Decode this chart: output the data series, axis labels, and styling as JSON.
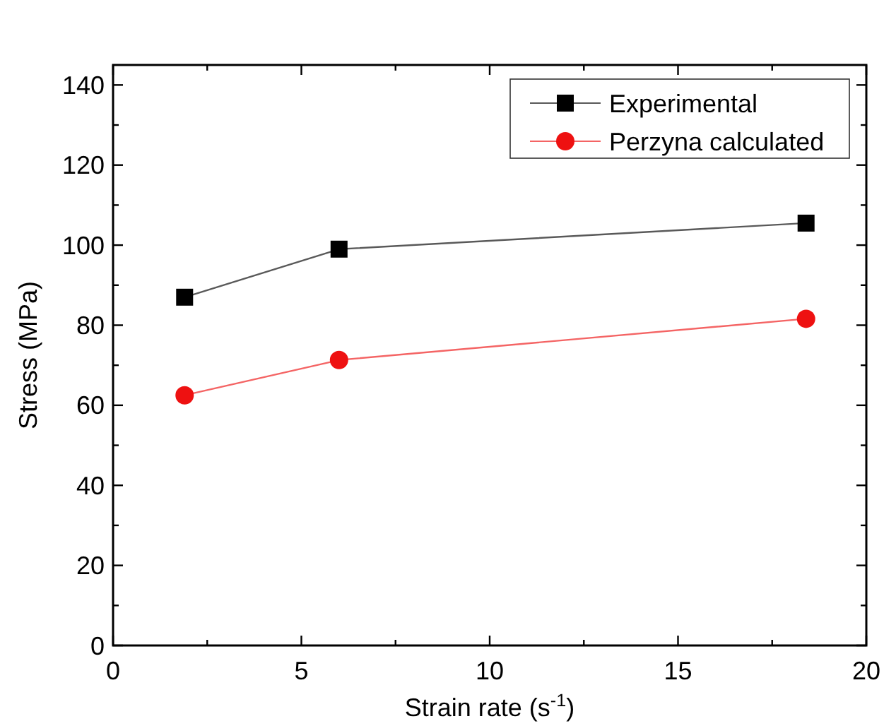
{
  "chart_data": {
    "type": "line",
    "xlabel": "Strain rate (s$^{-1}$)",
    "ylabel": "Stress (MPa)",
    "x": [
      1.9,
      6.0,
      18.4
    ],
    "series": [
      {
        "name": "Experimental",
        "color": "#000000",
        "marker": "square",
        "values": [
          87,
          99,
          105.5
        ]
      },
      {
        "name": "Perzyna calculated",
        "color": "#ee1111",
        "marker": "circle",
        "values": [
          62.5,
          71.3,
          81.6
        ]
      }
    ],
    "xlim": [
      0,
      20
    ],
    "ylim": [
      0,
      145
    ],
    "xticks": [
      0,
      {
        "value": 2.5,
        "label": null
      },
      5,
      {
        "value": 7.5,
        "label": null
      },
      10,
      {
        "value": 12.5,
        "label": null
      },
      15,
      {
        "value": 17.5,
        "label": null
      },
      20
    ],
    "yticks": [
      0,
      {
        "value": 10,
        "label": null
      },
      20,
      {
        "value": 30,
        "label": null
      },
      40,
      {
        "value": 50,
        "label": null
      },
      60,
      {
        "value": 70,
        "label": null
      },
      80,
      {
        "value": 90,
        "label": null
      },
      100,
      {
        "value": 110,
        "label": null
      },
      120,
      {
        "value": 130,
        "label": null
      },
      140
    ],
    "legend": "top right",
    "grid": false
  }
}
